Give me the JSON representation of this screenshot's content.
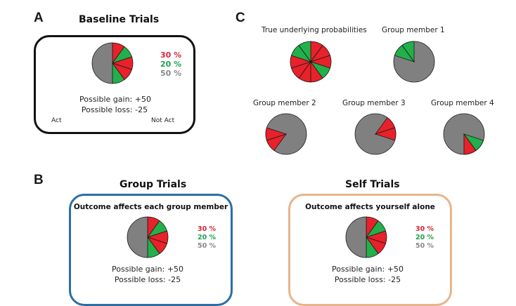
{
  "colors": {
    "red": "#e8212a",
    "green": "#22b04b",
    "gray": "#808080",
    "stroke": "#1a1a1a",
    "pct_red": "#d9263a",
    "pct_green": "#1fa04f",
    "pct_gray": "#8a8a8a",
    "group_border": "#2e6da4",
    "self_border": "#e8b48a"
  },
  "panel_a": {
    "letter": "A",
    "title": "Baseline Trials",
    "pie": {
      "slices": [
        {
          "color": "red",
          "fraction": 0.1
        },
        {
          "color": "green",
          "fraction": 0.1
        },
        {
          "color": "red",
          "fraction": 0.1
        },
        {
          "color": "red",
          "fraction": 0.1
        },
        {
          "color": "green",
          "fraction": 0.1
        },
        {
          "color": "gray",
          "fraction": 0.5
        }
      ]
    },
    "legend": {
      "red": "30 %",
      "green": "20 %",
      "gray": "50 %"
    },
    "gain": "Possible gain: +50",
    "loss": "Possible loss: -25",
    "act": "Act",
    "not_act": "Not Act"
  },
  "panel_b": {
    "letter": "B",
    "group": {
      "title": "Group Trials",
      "subtitle": "Outcome affects each group member",
      "legend": {
        "red": "30 %",
        "green": "20 %",
        "gray": "50 %"
      },
      "gain": "Possible gain: +50",
      "loss": "Possible loss: -25"
    },
    "self": {
      "title": "Self Trials",
      "subtitle": "Outcome affects yourself alone",
      "legend": {
        "red": "30 %",
        "green": "20 %",
        "gray": "50 %"
      },
      "gain": "Possible gain: +50",
      "loss": "Possible loss: -25"
    }
  },
  "panel_c": {
    "letter": "C",
    "true_label": "True underlying probabilities",
    "true_slices": [
      "red",
      "red",
      "red",
      "green",
      "red",
      "red",
      "red",
      "red",
      "green",
      "green"
    ],
    "members": [
      {
        "label": "Group member 1",
        "revealed": {
          "8": "green",
          "9": "green"
        }
      },
      {
        "label": "Group member 2",
        "revealed": {
          "6": "red",
          "7": "red"
        }
      },
      {
        "label": "Group member 3",
        "revealed": {
          "1": "red",
          "2": "red"
        }
      },
      {
        "label": "Group member 4",
        "revealed": {
          "3": "green",
          "4": "red"
        }
      }
    ]
  }
}
